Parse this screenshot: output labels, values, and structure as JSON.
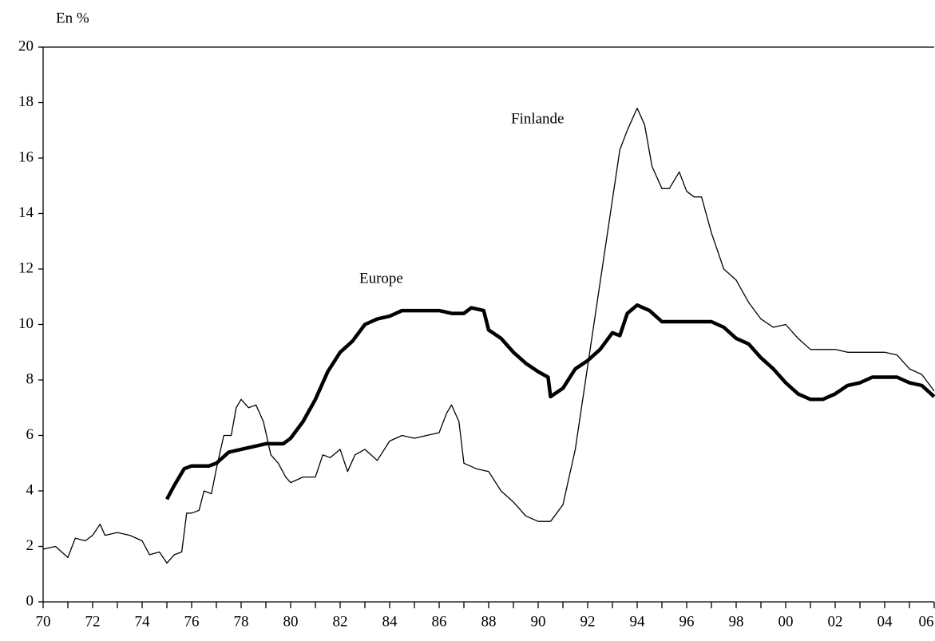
{
  "chart_data": {
    "type": "line",
    "ylabel": "En %",
    "xlim": [
      1970,
      2006
    ],
    "xticks": [
      {
        "value": 1970,
        "label": "70"
      },
      {
        "value": 1972,
        "label": "72"
      },
      {
        "value": 1974,
        "label": "74"
      },
      {
        "value": 1976,
        "label": "76"
      },
      {
        "value": 1978,
        "label": "78"
      },
      {
        "value": 1980,
        "label": "80"
      },
      {
        "value": 1982,
        "label": "82"
      },
      {
        "value": 1984,
        "label": "84"
      },
      {
        "value": 1986,
        "label": "86"
      },
      {
        "value": 1988,
        "label": "88"
      },
      {
        "value": 1990,
        "label": "90"
      },
      {
        "value": 1992,
        "label": "92"
      },
      {
        "value": 1994,
        "label": "94"
      },
      {
        "value": 1996,
        "label": "96"
      },
      {
        "value": 1998,
        "label": "98"
      },
      {
        "value": 2000,
        "label": "00"
      },
      {
        "value": 2002,
        "label": "02"
      },
      {
        "value": 2004,
        "label": "04"
      },
      {
        "value": 2006,
        "label": "06"
      }
    ],
    "ylim": [
      0,
      20
    ],
    "yticks": [
      0,
      2,
      4,
      6,
      8,
      10,
      12,
      14,
      16,
      18,
      20
    ],
    "grid": false,
    "series": [
      {
        "name": "Finlande",
        "color": "#000000",
        "line_width": 1.3,
        "x": [
          1970,
          1970.5,
          1971,
          1971.3,
          1971.7,
          1972,
          1972.3,
          1972.5,
          1973,
          1973.5,
          1974,
          1974.3,
          1974.7,
          1975,
          1975.3,
          1975.6,
          1975.8,
          1976,
          1976.3,
          1976.5,
          1976.8,
          1977,
          1977.3,
          1977.6,
          1977.8,
          1978,
          1978.3,
          1978.6,
          1978.9,
          1979.2,
          1979.5,
          1979.8,
          1980,
          1980.5,
          1981,
          1981.3,
          1981.6,
          1982,
          1982.3,
          1982.6,
          1983,
          1983.5,
          1984,
          1984.5,
          1985,
          1985.5,
          1986,
          1986.3,
          1986.5,
          1986.8,
          1987,
          1987.5,
          1988,
          1988.5,
          1989,
          1989.5,
          1990,
          1990.5,
          1991,
          1991.5,
          1992,
          1992.5,
          1993,
          1993.3,
          1993.6,
          1994,
          1994.3,
          1994.6,
          1995,
          1995.3,
          1995.7,
          1996,
          1996.3,
          1996.6,
          1997,
          1997.5,
          1998,
          1998.5,
          1999,
          1999.5,
          2000,
          2000.5,
          2001,
          2001.5,
          2002,
          2002.5,
          2003,
          2003.5,
          2004,
          2004.5,
          2005,
          2005.5,
          2006
        ],
        "values": [
          1.9,
          2.0,
          1.6,
          2.3,
          2.2,
          2.4,
          2.8,
          2.4,
          2.5,
          2.4,
          2.2,
          1.7,
          1.8,
          1.4,
          1.7,
          1.8,
          3.2,
          3.2,
          3.3,
          4.0,
          3.9,
          4.8,
          6.0,
          6.0,
          7.0,
          7.3,
          7.0,
          7.1,
          6.5,
          5.3,
          5.0,
          4.5,
          4.3,
          4.5,
          4.5,
          5.3,
          5.2,
          5.5,
          4.7,
          5.3,
          5.5,
          5.1,
          5.8,
          6.0,
          5.9,
          6.0,
          6.1,
          6.8,
          7.1,
          6.5,
          5.0,
          4.8,
          4.7,
          4.0,
          3.6,
          3.1,
          2.9,
          2.9,
          3.5,
          5.5,
          8.5,
          11.5,
          14.5,
          16.3,
          17.0,
          17.8,
          17.2,
          15.7,
          14.9,
          14.9,
          15.5,
          14.8,
          14.6,
          14.6,
          13.3,
          12.0,
          11.6,
          10.8,
          10.2,
          9.9,
          10.0,
          9.5,
          9.1,
          9.1,
          9.1,
          9.0,
          9.0,
          9.0,
          9.0,
          8.9,
          8.4,
          8.2,
          7.6
        ]
      },
      {
        "name": "Europe",
        "color": "#000000",
        "line_width": 4.5,
        "x": [
          1975,
          1975.3,
          1975.7,
          1976,
          1976.7,
          1977,
          1977.5,
          1978,
          1978.5,
          1979,
          1979.7,
          1980,
          1980.5,
          1981,
          1981.5,
          1982,
          1982.5,
          1983,
          1983.5,
          1984,
          1984.5,
          1985,
          1986,
          1986.5,
          1987,
          1987.3,
          1987.8,
          1988,
          1988.5,
          1989,
          1989.5,
          1990,
          1990.4,
          1990.5,
          1991,
          1991.5,
          1992,
          1992.5,
          1993,
          1993.3,
          1993.6,
          1994,
          1994.5,
          1995,
          1996,
          1997,
          1997.5,
          1998,
          1998.5,
          1999,
          1999.5,
          2000,
          2000.5,
          2001,
          2001.5,
          2002,
          2002.5,
          2003,
          2003.5,
          2004,
          2004.5,
          2005,
          2005.5,
          2006
        ],
        "values": [
          3.7,
          4.2,
          4.8,
          4.9,
          4.9,
          5.0,
          5.4,
          5.5,
          5.6,
          5.7,
          5.7,
          5.9,
          6.5,
          7.3,
          8.3,
          9.0,
          9.4,
          10.0,
          10.2,
          10.3,
          10.5,
          10.5,
          10.5,
          10.4,
          10.4,
          10.6,
          10.5,
          9.8,
          9.5,
          9.0,
          8.6,
          8.3,
          8.1,
          7.4,
          7.7,
          8.4,
          8.7,
          9.1,
          9.7,
          9.6,
          10.4,
          10.7,
          10.5,
          10.1,
          10.1,
          10.1,
          9.9,
          9.5,
          9.3,
          8.8,
          8.4,
          7.9,
          7.5,
          7.3,
          7.3,
          7.5,
          7.8,
          7.9,
          8.1,
          8.1,
          8.1,
          7.9,
          7.8,
          7.4
        ]
      }
    ]
  }
}
